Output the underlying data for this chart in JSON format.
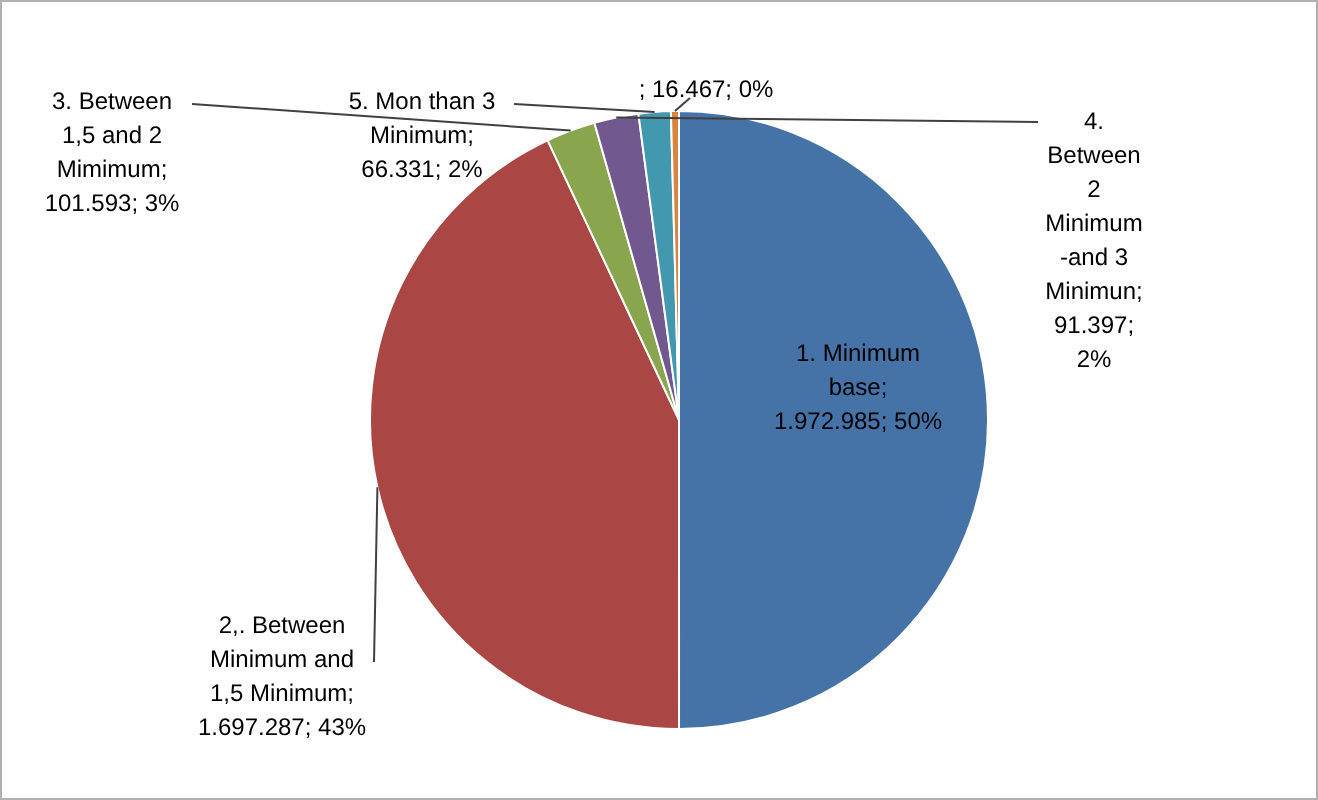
{
  "chart_data": {
    "type": "pie",
    "categories": [
      "1. Minimum base",
      "2,. Between Minimum and 1,5 Minimum",
      "3. Between 1,5 and 2 Mimimum",
      "4. Between 2 Minimum -and 3 Minimun",
      "5. Mon than 3 Minimum",
      null
    ],
    "values": [
      1972985,
      1697287,
      101593,
      91397,
      66331,
      16467
    ],
    "value_labels": [
      "; 1.972.985; 50%",
      "; 1.697.287; 43%",
      "; 101.593; 3%",
      "; 91.397; 2%",
      "; 66.331; 2%",
      "; 16.467; 0%"
    ],
    "colors": [
      "#4572a7",
      "#aa4643",
      "#89a54e",
      "#71588f",
      "#4198af",
      "#db843d"
    ]
  }
}
